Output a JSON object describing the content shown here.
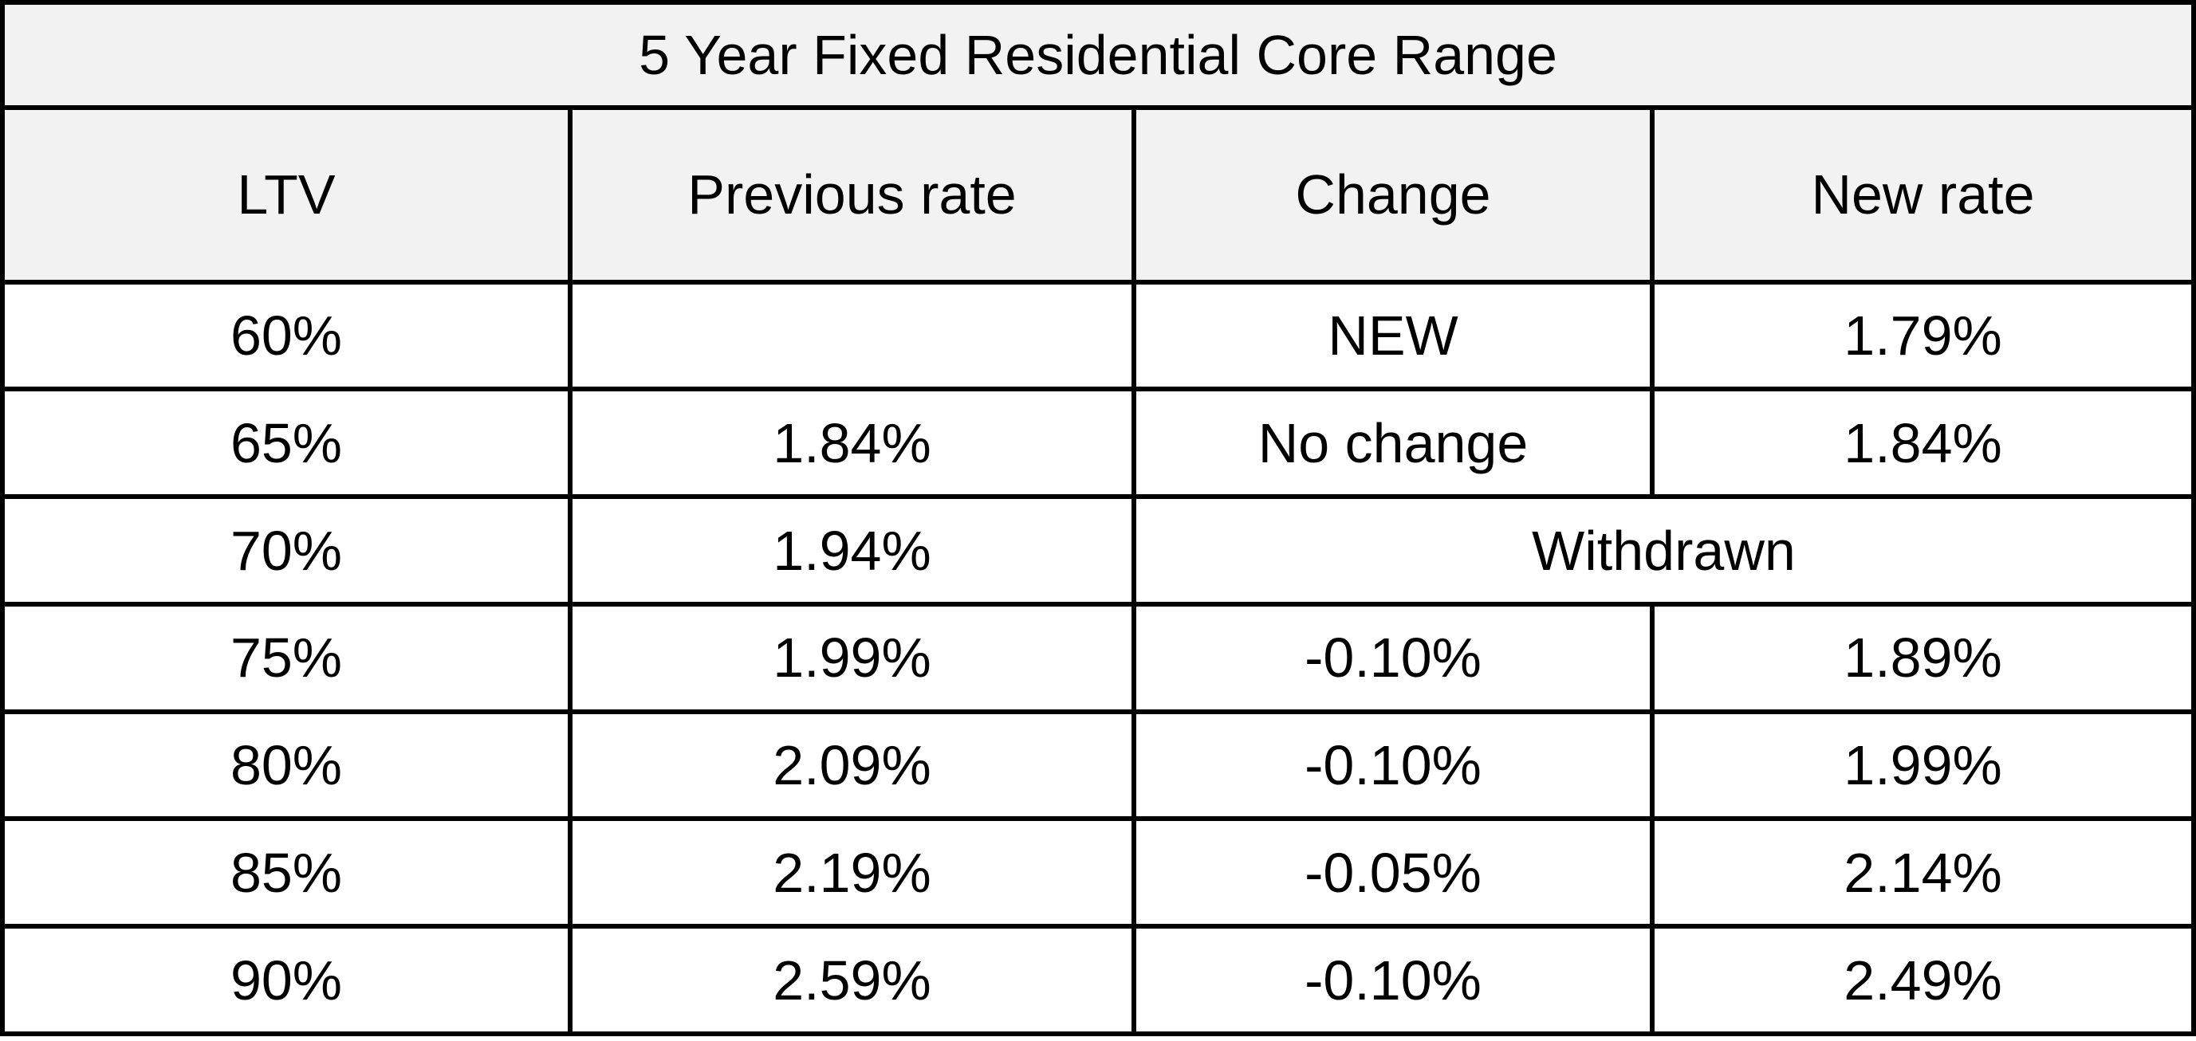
{
  "table": {
    "title": "5 Year Fixed Residential Core Range",
    "headers": [
      "LTV",
      "Previous rate",
      "Change",
      "New rate"
    ],
    "rows": [
      {
        "ltv": "60%",
        "previous": "",
        "change": "NEW",
        "new": "1.79%"
      },
      {
        "ltv": "65%",
        "previous": "1.84%",
        "change": "No change",
        "new": "1.84%"
      },
      {
        "ltv": "70%",
        "previous": "1.94%",
        "merged": "Withdrawn"
      },
      {
        "ltv": "75%",
        "previous": "1.99%",
        "change": "-0.10%",
        "new": "1.89%"
      },
      {
        "ltv": "80%",
        "previous": "2.09%",
        "change": "-0.10%",
        "new": "1.99%"
      },
      {
        "ltv": "85%",
        "previous": "2.19%",
        "change": "-0.05%",
        "new": "2.14%"
      },
      {
        "ltv": "90%",
        "previous": "2.59%",
        "change": "-0.10%",
        "new": "2.49%"
      }
    ]
  },
  "colors": {
    "header_background": "#f2f2f2",
    "border": "#000000",
    "text": "#000000"
  }
}
